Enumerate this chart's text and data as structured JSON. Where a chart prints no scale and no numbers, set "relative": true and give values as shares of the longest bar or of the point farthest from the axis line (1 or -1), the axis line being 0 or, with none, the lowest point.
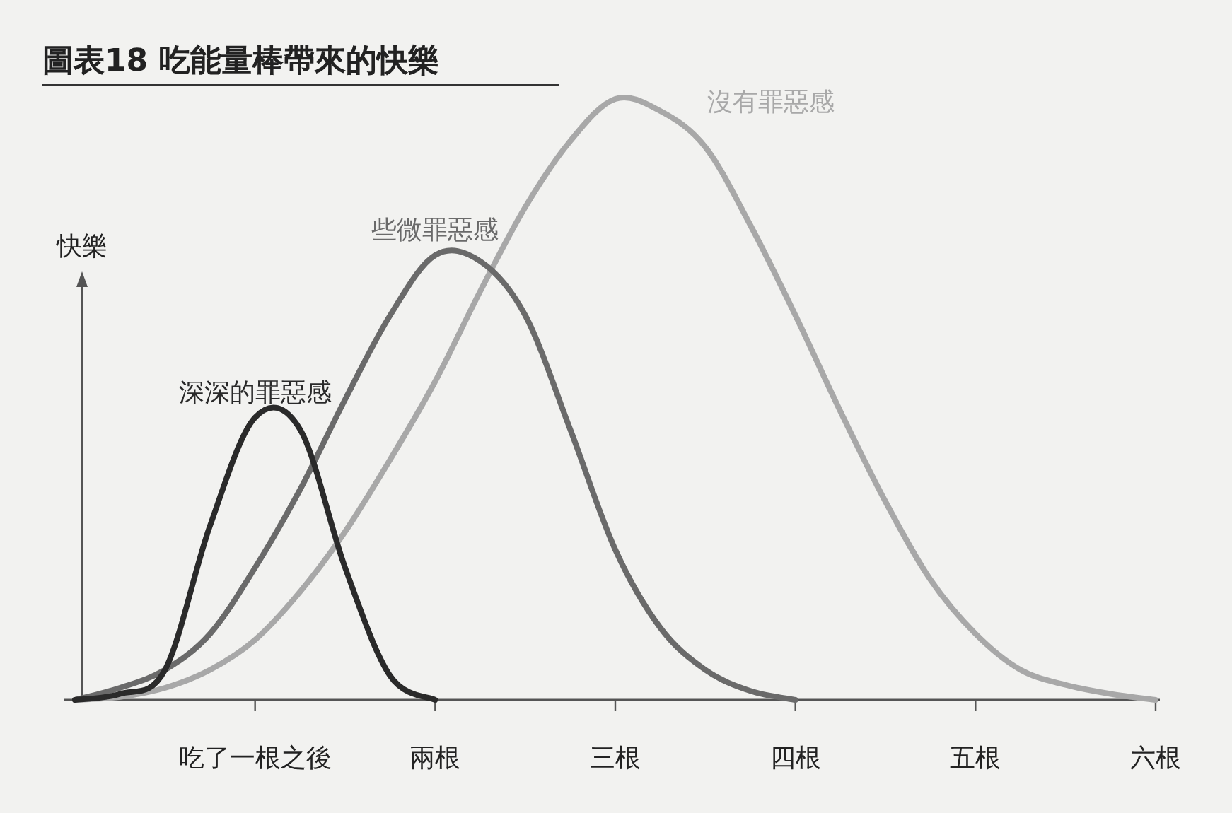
{
  "chart_data": {
    "type": "line",
    "title": "圖表18 吃能量棒帶來的快樂",
    "ylabel": "快樂",
    "relative": true,
    "line_style": "solid",
    "marker": "none",
    "grid": false,
    "categories": [
      null,
      null,
      null,
      null,
      "吃了一根之後",
      null,
      null,
      null,
      "兩根",
      null,
      null,
      null,
      "三根",
      null,
      null,
      null,
      "四根",
      null,
      null,
      null,
      "五根",
      null,
      null,
      null,
      "六根"
    ],
    "series": [
      {
        "name": "深深的罪惡感",
        "color": "#2a2a2a",
        "values": [
          0,
          0.01,
          0.05,
          0.29,
          0.47,
          0.45,
          0.22,
          0.04,
          0,
          null,
          null,
          null,
          null,
          null,
          null,
          null,
          null,
          null,
          null,
          null,
          null,
          null,
          null,
          null,
          null
        ]
      },
      {
        "name": "些微罪惡感",
        "color": "#6a6a6a",
        "values": [
          0,
          0.02,
          0.05,
          0.11,
          0.22,
          0.35,
          0.5,
          0.64,
          0.74,
          0.73,
          0.64,
          0.45,
          0.25,
          0.12,
          0.05,
          0.015,
          0,
          null,
          null,
          null,
          null,
          null,
          null,
          null,
          null
        ]
      },
      {
        "name": "沒有罪惡感",
        "color": "#a8a8a8",
        "values": [
          0,
          0.005,
          0.02,
          0.05,
          0.1,
          0.18,
          0.28,
          0.4,
          0.53,
          0.68,
          0.82,
          0.93,
          1,
          0.98,
          0.92,
          0.79,
          0.64,
          0.48,
          0.33,
          0.2,
          0.11,
          0.05,
          0.025,
          0.01,
          0
        ]
      }
    ]
  }
}
